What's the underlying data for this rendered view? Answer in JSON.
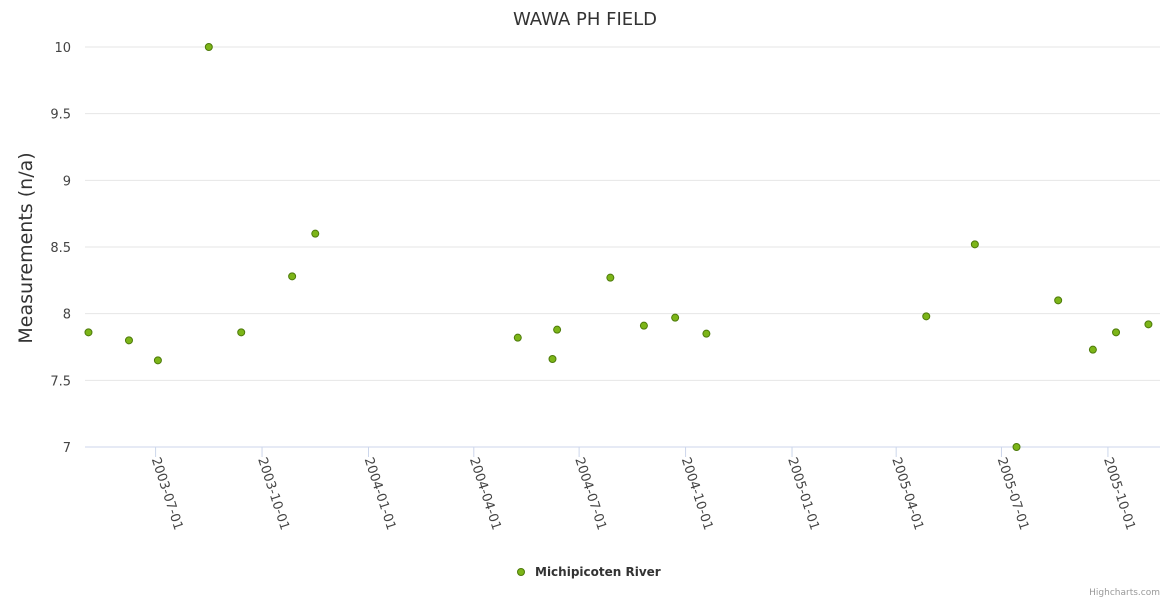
{
  "colors": {
    "point_fill": "#7cb518",
    "point_stroke": "#4d7a0a",
    "grid": "#e6e6e6",
    "axis": "#ccd6eb"
  },
  "credits": "Highcharts.com",
  "chart_data": {
    "type": "scatter",
    "title": "WAWA PH FIELD",
    "ylabel": "Measurements (n/a)",
    "xlabel": "",
    "xlim": [
      "2003-05-01",
      "2005-11-15"
    ],
    "ylim": [
      7,
      10
    ],
    "yticks": [
      7,
      7.5,
      8,
      8.5,
      9,
      9.5,
      10
    ],
    "ytick_labels": [
      "7",
      "7.5",
      "8",
      "8.5",
      "9",
      "9.5",
      "10"
    ],
    "xticks": [
      "2003-07-01",
      "2003-10-01",
      "2004-01-01",
      "2004-04-01",
      "2004-07-01",
      "2004-10-01",
      "2005-01-01",
      "2005-04-01",
      "2005-07-01",
      "2005-10-01"
    ],
    "grid": true,
    "legend": "bottom-center",
    "series": [
      {
        "name": "Michipicoten River",
        "points": [
          {
            "x": "2003-05-04",
            "y": 7.86
          },
          {
            "x": "2003-06-08",
            "y": 7.8
          },
          {
            "x": "2003-07-03",
            "y": 7.65
          },
          {
            "x": "2003-08-16",
            "y": 10
          },
          {
            "x": "2003-09-13",
            "y": 7.86
          },
          {
            "x": "2003-10-27",
            "y": 8.28
          },
          {
            "x": "2003-11-16",
            "y": 8.6
          },
          {
            "x": "2004-05-09",
            "y": 7.82
          },
          {
            "x": "2004-06-12",
            "y": 7.88
          },
          {
            "x": "2004-06-08",
            "y": 7.66
          },
          {
            "x": "2004-07-28",
            "y": 8.27
          },
          {
            "x": "2004-08-26",
            "y": 7.91
          },
          {
            "x": "2004-09-22",
            "y": 7.97
          },
          {
            "x": "2004-10-19",
            "y": 7.85
          },
          {
            "x": "2005-04-27",
            "y": 7.98
          },
          {
            "x": "2005-06-08",
            "y": 8.52
          },
          {
            "x": "2005-07-14",
            "y": 7.0
          },
          {
            "x": "2005-08-19",
            "y": 8.1
          },
          {
            "x": "2005-09-18",
            "y": 7.73
          },
          {
            "x": "2005-10-08",
            "y": 7.86
          },
          {
            "x": "2005-11-05",
            "y": 7.92
          }
        ]
      }
    ]
  }
}
